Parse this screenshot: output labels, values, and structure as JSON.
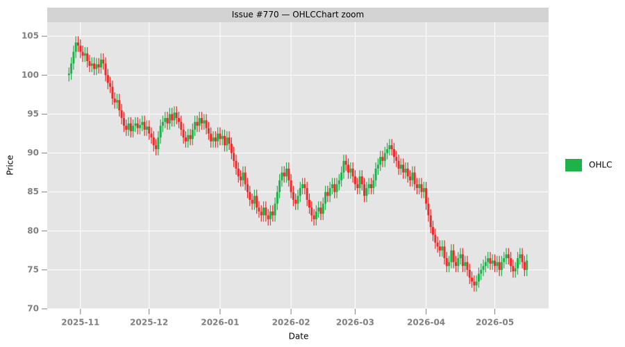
{
  "chart_data": {
    "type": "candlestick",
    "title": "Issue #770 — OHLCChart zoom",
    "x_label": "Date",
    "y_label": "Price",
    "xlim": [
      -9.5,
      209.5
    ],
    "xticks": [
      {
        "value": 5,
        "label": "2025-11"
      },
      {
        "value": 35,
        "label": "2025-12"
      },
      {
        "value": 66,
        "label": "2026-01"
      },
      {
        "value": 97,
        "label": "2026-02"
      },
      {
        "value": 125,
        "label": "2026-03"
      },
      {
        "value": 156,
        "label": "2026-04"
      },
      {
        "value": 186,
        "label": "2026-05"
      }
    ],
    "ylim": [
      70,
      106.8
    ],
    "yticks": [
      70,
      75,
      80,
      85,
      90,
      95,
      100,
      105
    ],
    "grid": true,
    "legend": "right",
    "series": [
      {
        "name": "OHLC",
        "color": "#1db349",
        "up_color": "#1db349",
        "down_color": "#ee2a2a",
        "open": [
          100.0,
          100.2,
          101.5,
          103,
          104.2,
          103.8,
          103.0,
          102.5,
          102.8,
          101.8,
          101.2,
          101.5,
          100.8,
          101.4,
          101.0,
          102.0,
          101.5,
          100.0,
          99.0,
          98.5,
          97.0,
          96.5,
          96.8,
          95.5,
          94.5,
          93.5,
          93.0,
          93.8,
          92.8,
          93.5,
          93.8,
          93.2,
          93.6,
          94.0,
          93.0,
          93.4,
          92.5,
          92.0,
          91.0,
          90.5,
          92.0,
          93.5,
          94.0,
          94.5,
          93.8,
          95.0,
          94.2,
          95.2,
          94.5,
          94.0,
          93.0,
          92.0,
          91.5,
          92.3,
          91.8,
          93.0,
          94.0,
          93.5,
          94.5,
          93.8,
          94.2,
          93.2,
          92.5,
          91.5,
          92.0,
          91.5,
          92.5,
          91.8,
          92.2,
          91.0,
          92.0,
          91.2,
          90.0,
          89.0,
          88.0,
          87.0,
          86.5,
          87.5,
          86.0,
          85.0,
          84.0,
          83.5,
          84.5,
          83.0,
          82.5,
          82.0,
          83.0,
          82.0,
          81.5,
          82.5,
          82.0,
          83.5,
          85.0,
          86.5,
          87.5,
          87.0,
          88.0,
          86.5,
          85.0,
          84.0,
          83.5,
          84.5,
          85.5,
          86.0,
          85.5,
          84.0,
          83.0,
          82.0,
          81.5,
          82.5,
          83.0,
          82.2,
          83.5,
          85.0,
          84.5,
          85.5,
          86.0,
          85.0,
          86.0,
          86.5,
          87.5,
          89.0,
          88.5,
          87.5,
          88.0,
          87.0,
          86.0,
          85.5,
          87.0,
          86.0,
          84.5,
          85.5,
          86.0,
          85.5,
          86.5,
          88.0,
          88.5,
          89.5,
          89.0,
          90.0,
          90.5,
          91.0,
          90.5,
          89.5,
          89.0,
          88.0,
          88.5,
          87.5,
          88.0,
          87.0,
          86.5,
          87.5,
          86.0,
          85.5,
          86.0,
          85.0,
          85.5,
          83.5,
          82.0,
          80.5,
          79.5,
          78.5,
          78.0,
          77.5,
          78.0,
          76.5,
          75.5,
          76.0,
          77.5,
          76.0,
          75.5,
          76.5,
          77.0,
          75.5,
          76.0,
          75.0,
          74.0,
          73.5,
          73.0,
          73.5,
          74.5,
          75.0,
          75.5,
          76.0,
          76.5,
          75.8,
          76.2,
          75.5,
          76.0,
          75.0,
          76.0,
          76.5,
          77.0,
          76.5,
          75.5,
          74.8,
          75.2,
          76.5,
          77.0,
          76.0,
          75.0
        ],
        "high": [
          101.0,
          102.3,
          103.8,
          105.0,
          105.0,
          104.6,
          103.8,
          103.6,
          103.6,
          102.6,
          102.3,
          102.3,
          102.2,
          102.2,
          102.8,
          102.8,
          102.3,
          100.8,
          99.8,
          99.3,
          97.8,
          97.6,
          97.6,
          96.3,
          95.3,
          94.3,
          94.6,
          94.6,
          94.3,
          94.6,
          94.6,
          94.4,
          94.8,
          94.8,
          94.2,
          94.2,
          93.3,
          92.8,
          91.8,
          92.8,
          94.3,
          94.8,
          95.3,
          95.3,
          95.8,
          95.8,
          96.0,
          96.0,
          95.3,
          94.8,
          93.8,
          92.8,
          93.1,
          93.1,
          93.8,
          94.8,
          94.8,
          95.3,
          95.3,
          95.0,
          95.0,
          94.0,
          93.3,
          92.8,
          92.8,
          93.3,
          93.3,
          93.0,
          93.0,
          92.8,
          92.8,
          92.0,
          90.8,
          89.8,
          88.8,
          87.8,
          88.3,
          88.3,
          86.8,
          85.8,
          84.8,
          85.3,
          85.3,
          83.8,
          83.3,
          83.8,
          83.8,
          82.8,
          83.3,
          83.3,
          84.3,
          85.8,
          87.3,
          88.3,
          88.3,
          88.8,
          88.8,
          87.3,
          85.8,
          84.8,
          85.3,
          86.3,
          86.8,
          86.8,
          86.3,
          84.8,
          83.8,
          82.8,
          83.3,
          83.8,
          83.8,
          84.3,
          85.8,
          85.8,
          86.3,
          86.8,
          86.8,
          86.8,
          87.3,
          88.3,
          89.8,
          89.8,
          89.3,
          88.8,
          88.8,
          87.8,
          86.8,
          87.8,
          87.8,
          86.8,
          86.3,
          86.8,
          86.8,
          87.3,
          88.8,
          89.3,
          90.3,
          90.3,
          90.8,
          91.3,
          91.8,
          91.8,
          91.3,
          90.3,
          89.8,
          89.3,
          89.3,
          88.8,
          88.8,
          87.8,
          88.3,
          88.3,
          86.8,
          86.8,
          86.8,
          86.3,
          86.3,
          84.3,
          82.8,
          81.3,
          80.3,
          79.3,
          78.8,
          78.8,
          78.8,
          77.3,
          76.8,
          78.3,
          78.3,
          76.8,
          77.3,
          77.8,
          77.8,
          76.8,
          76.8,
          75.8,
          74.8,
          74.3,
          74.3,
          75.3,
          75.8,
          76.3,
          76.8,
          77.3,
          77.3,
          77.0,
          77.0,
          76.8,
          76.8,
          76.8,
          77.3,
          77.8,
          77.8,
          77.3,
          76.3,
          76.0,
          77.3,
          77.8,
          77.8,
          76.8,
          77.0
        ],
        "low": [
          99.2,
          99.4,
          100.7,
          102.2,
          103.0,
          102.2,
          101.7,
          101.7,
          101.0,
          100.4,
          100.4,
          100.0,
          100.0,
          100.2,
          100.2,
          100.7,
          99.2,
          98.2,
          97.7,
          96.2,
          95.7,
          95.7,
          94.7,
          93.7,
          92.7,
          92.2,
          92.2,
          92.0,
          92.0,
          92.7,
          92.4,
          92.4,
          92.8,
          92.2,
          92.2,
          91.7,
          91.2,
          90.2,
          89.7,
          89.7,
          91.2,
          92.7,
          93.2,
          93.0,
          93.0,
          93.4,
          93.4,
          93.7,
          93.2,
          92.2,
          91.2,
          90.7,
          90.7,
          91.0,
          91.0,
          92.2,
          92.7,
          92.7,
          93.0,
          93.0,
          92.4,
          91.7,
          90.7,
          90.7,
          90.7,
          90.7,
          91.0,
          91.0,
          90.2,
          90.2,
          90.4,
          89.2,
          88.2,
          87.2,
          86.2,
          85.7,
          85.7,
          85.2,
          84.2,
          83.2,
          82.7,
          82.7,
          82.2,
          81.7,
          81.2,
          81.2,
          81.2,
          80.7,
          80.7,
          81.2,
          81.2,
          82.7,
          84.2,
          85.7,
          86.2,
          86.2,
          85.7,
          84.2,
          83.2,
          82.7,
          82.7,
          83.7,
          84.7,
          84.7,
          83.2,
          82.2,
          81.2,
          80.7,
          80.7,
          81.7,
          81.4,
          81.4,
          82.7,
          83.7,
          83.7,
          84.7,
          84.2,
          84.2,
          85.2,
          85.7,
          86.7,
          87.7,
          86.7,
          86.7,
          86.2,
          85.2,
          84.7,
          84.7,
          85.2,
          83.7,
          83.7,
          84.7,
          84.7,
          84.7,
          85.7,
          87.2,
          87.7,
          88.2,
          88.2,
          89.2,
          89.7,
          89.7,
          88.7,
          88.2,
          87.2,
          87.2,
          86.7,
          86.7,
          86.2,
          85.7,
          85.7,
          85.2,
          84.7,
          84.7,
          84.2,
          84.2,
          82.7,
          81.2,
          79.7,
          78.7,
          77.7,
          77.2,
          76.7,
          76.7,
          75.7,
          74.7,
          74.7,
          75.2,
          75.2,
          74.7,
          74.7,
          75.7,
          74.7,
          74.7,
          74.2,
          73.2,
          72.7,
          72.2,
          72.2,
          72.7,
          73.7,
          74.2,
          74.7,
          75.2,
          75.0,
          75.0,
          74.7,
          74.7,
          74.2,
          74.2,
          75.2,
          75.7,
          75.7,
          74.7,
          74.0,
          74.0,
          74.4,
          75.7,
          75.2,
          74.2,
          74.2
        ],
        "close": [
          100.2,
          101.5,
          103,
          104.2,
          103.8,
          103.0,
          102.5,
          102.8,
          101.8,
          101.2,
          101.5,
          100.8,
          101.4,
          101.0,
          102.0,
          101.5,
          100.0,
          99.0,
          98.5,
          97.0,
          96.5,
          96.8,
          95.5,
          94.5,
          93.5,
          93.0,
          93.8,
          92.8,
          93.5,
          93.8,
          93.2,
          93.6,
          94.0,
          93.0,
          93.4,
          92.5,
          92.0,
          91.0,
          90.5,
          92.0,
          93.5,
          94.0,
          94.5,
          93.8,
          95.0,
          94.2,
          95.2,
          94.5,
          94.0,
          93.0,
          92.0,
          91.5,
          92.3,
          91.8,
          93.0,
          94.0,
          93.5,
          94.5,
          93.8,
          94.2,
          93.2,
          92.5,
          91.5,
          92.0,
          91.5,
          92.5,
          91.8,
          92.2,
          91.0,
          92.0,
          91.2,
          90.0,
          89.0,
          88.0,
          87.0,
          86.5,
          87.5,
          86.0,
          85.0,
          84.0,
          83.5,
          84.5,
          83.0,
          82.5,
          82.0,
          83.0,
          82.0,
          81.5,
          82.5,
          82.0,
          83.5,
          85.0,
          86.5,
          87.5,
          87.0,
          88.0,
          86.5,
          85.0,
          84.0,
          83.5,
          84.5,
          85.5,
          86.0,
          85.5,
          84.0,
          83.0,
          82.0,
          81.5,
          82.5,
          83.0,
          82.2,
          83.5,
          85.0,
          84.5,
          85.5,
          86.0,
          85.0,
          86.0,
          86.5,
          87.5,
          89.0,
          88.5,
          87.5,
          88.0,
          87.0,
          86.0,
          85.5,
          87.0,
          86.0,
          84.5,
          85.5,
          86.0,
          85.5,
          86.5,
          88.0,
          88.5,
          89.5,
          89.0,
          90.0,
          90.5,
          91.0,
          90.5,
          89.5,
          89.0,
          88.0,
          88.5,
          87.5,
          88.0,
          87.0,
          86.5,
          87.5,
          86.0,
          85.5,
          86.0,
          85.0,
          85.5,
          83.5,
          82.0,
          80.5,
          79.5,
          78.5,
          78.0,
          77.5,
          78.0,
          76.5,
          75.5,
          76.0,
          77.5,
          76.0,
          75.5,
          76.5,
          77.0,
          75.5,
          76.0,
          75.0,
          74.0,
          73.5,
          73.0,
          73.5,
          74.5,
          75.0,
          75.5,
          76.0,
          76.5,
          75.8,
          76.2,
          75.5,
          76.0,
          75.0,
          76.0,
          76.5,
          77.0,
          76.5,
          75.5,
          74.8,
          75.2,
          76.5,
          77.0,
          76.0,
          75.0,
          76.2
        ]
      }
    ]
  }
}
